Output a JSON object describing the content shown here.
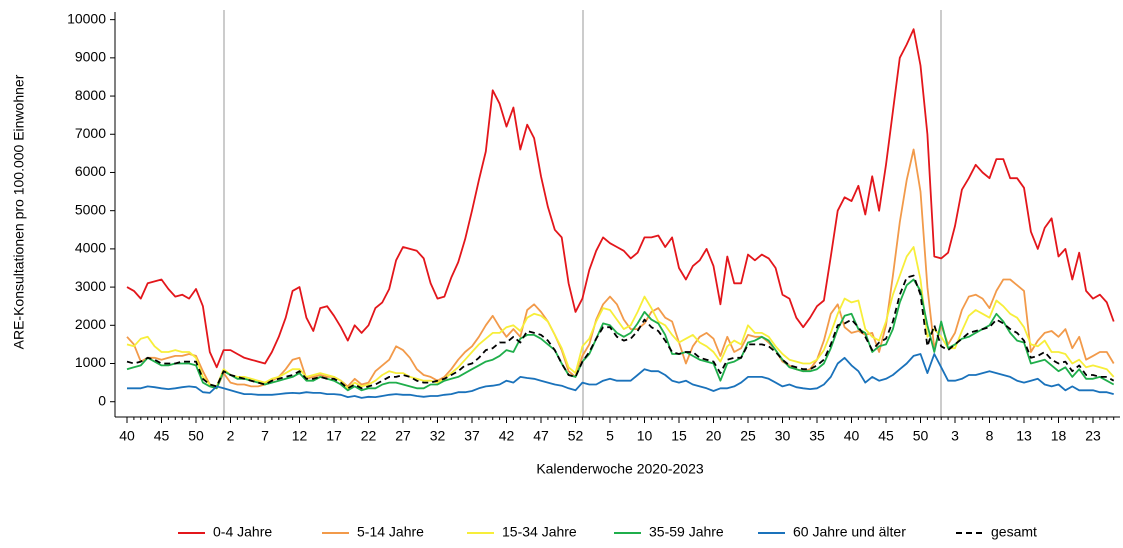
{
  "chart_data": {
    "type": "line",
    "y_label": "ARE-Konsultationen pro 100.000 Einwohner",
    "x_label": "Kalenderwoche 2020-2023",
    "categories": [
      "40",
      null,
      null,
      null,
      null,
      "45",
      null,
      null,
      null,
      null,
      "50",
      null,
      null,
      null,
      null,
      "2",
      null,
      null,
      null,
      null,
      "7",
      null,
      null,
      null,
      null,
      "12",
      null,
      null,
      null,
      null,
      "17",
      null,
      null,
      null,
      null,
      "22",
      null,
      null,
      null,
      null,
      "27",
      null,
      null,
      null,
      null,
      "32",
      null,
      null,
      null,
      null,
      "37",
      null,
      null,
      null,
      null,
      "42",
      null,
      null,
      null,
      null,
      "47",
      null,
      null,
      null,
      null,
      "52",
      null,
      null,
      null,
      null,
      "5",
      null,
      null,
      null,
      null,
      "10",
      null,
      null,
      null,
      null,
      "15",
      null,
      null,
      null,
      null,
      "20",
      null,
      null,
      null,
      null,
      "25",
      null,
      null,
      null,
      null,
      "30",
      null,
      null,
      null,
      null,
      "35",
      null,
      null,
      null,
      null,
      "40",
      null,
      null,
      null,
      null,
      "45",
      null,
      null,
      null,
      null,
      "50",
      null,
      null,
      null,
      null,
      "3",
      null,
      null,
      null,
      null,
      "8",
      null,
      null,
      null,
      null,
      "13",
      null,
      null,
      null,
      null,
      "18",
      null,
      null,
      null,
      null,
      "23",
      null,
      null,
      null
    ],
    "series": [
      {
        "name": "0-4 Jahre",
        "color": "#e3161b",
        "values": [
          3000,
          2900,
          2700,
          3100,
          3150,
          3200,
          2950,
          2750,
          2800,
          2700,
          2950,
          2500,
          1300,
          900,
          1350,
          1350,
          1250,
          1150,
          1100,
          1050,
          1000,
          1300,
          1700,
          2200,
          2900,
          3000,
          2200,
          1850,
          2450,
          2500,
          2250,
          1950,
          1600,
          2000,
          1800,
          2000,
          2450,
          2600,
          2950,
          3700,
          4050,
          4000,
          3950,
          3750,
          3100,
          2700,
          2750,
          3250,
          3650,
          4250,
          5000,
          5800,
          6550,
          8150,
          7800,
          7200,
          7700,
          6600,
          7250,
          6900,
          5900,
          5100,
          4500,
          4300,
          3100,
          2350,
          2700,
          3450,
          3950,
          4300,
          4150,
          4050,
          3950,
          3750,
          3900,
          4300,
          4300,
          4350,
          4050,
          4300,
          3500,
          3200,
          3550,
          3700,
          4000,
          3550,
          2550,
          3800,
          3100,
          3100,
          3850,
          3700,
          3850,
          3750,
          3500,
          2800,
          2700,
          2200,
          1950,
          2200,
          2500,
          2650,
          3800,
          5000,
          5350,
          5250,
          5650,
          4900,
          5900,
          5000,
          6200,
          7600,
          9000,
          9350,
          9750,
          8800,
          7000,
          3800,
          3750,
          3900,
          4600,
          5550,
          5850,
          6200,
          6000,
          5850,
          6350,
          6350,
          5850,
          5850,
          5600,
          4450,
          4000,
          4550,
          4800,
          3800,
          4000,
          3200,
          3900,
          2900,
          2700,
          2800,
          2600,
          2100
        ]
      },
      {
        "name": "5-14 Jahre",
        "color": "#f29a4a",
        "values": [
          1700,
          1500,
          1050,
          1150,
          1150,
          1100,
          1150,
          1200,
          1200,
          1250,
          1200,
          800,
          450,
          350,
          750,
          500,
          450,
          450,
          400,
          400,
          450,
          550,
          650,
          850,
          1100,
          1150,
          600,
          650,
          700,
          650,
          650,
          550,
          400,
          600,
          450,
          500,
          800,
          950,
          1100,
          1450,
          1350,
          1150,
          850,
          700,
          650,
          550,
          650,
          850,
          1100,
          1300,
          1450,
          1700,
          2000,
          2250,
          1950,
          1700,
          1900,
          1700,
          2400,
          2550,
          2350,
          2100,
          1750,
          1350,
          800,
          650,
          1200,
          1500,
          2150,
          2550,
          2750,
          2550,
          2150,
          1900,
          1900,
          2050,
          2350,
          2450,
          2200,
          2100,
          1550,
          1000,
          1450,
          1700,
          1800,
          1650,
          1200,
          1700,
          1300,
          1400,
          1750,
          1700,
          1700,
          1550,
          1350,
          1050,
          950,
          850,
          800,
          850,
          1100,
          1600,
          2300,
          2550,
          1950,
          1800,
          1850,
          1750,
          1800,
          1300,
          2000,
          3300,
          4700,
          5800,
          6600,
          5500,
          3000,
          1400,
          2000,
          1500,
          1800,
          2400,
          2750,
          2800,
          2700,
          2450,
          2900,
          3200,
          3200,
          3050,
          2900,
          1300,
          1600,
          1800,
          1850,
          1700,
          1900,
          1400,
          1700,
          1100,
          1200,
          1300,
          1300,
          1000
        ]
      },
      {
        "name": "15-34 Jahre",
        "color": "#f7ee3a",
        "values": [
          1500,
          1450,
          1650,
          1700,
          1450,
          1300,
          1300,
          1350,
          1300,
          1300,
          1150,
          650,
          450,
          400,
          850,
          700,
          650,
          650,
          600,
          550,
          500,
          600,
          650,
          750,
          850,
          850,
          650,
          700,
          750,
          700,
          650,
          550,
          350,
          500,
          400,
          450,
          550,
          700,
          800,
          750,
          750,
          650,
          600,
          550,
          550,
          500,
          600,
          750,
          900,
          1100,
          1300,
          1500,
          1650,
          1800,
          1800,
          1950,
          2000,
          1850,
          2200,
          2300,
          2250,
          2100,
          1750,
          1400,
          900,
          750,
          1450,
          1650,
          2100,
          2450,
          2400,
          2150,
          1900,
          2000,
          2350,
          2750,
          2450,
          2100,
          2000,
          1750,
          1550,
          1650,
          1750,
          1550,
          1450,
          1300,
          1050,
          1450,
          1600,
          1500,
          2000,
          1800,
          1800,
          1700,
          1450,
          1250,
          1100,
          1050,
          1000,
          1000,
          1100,
          1350,
          1800,
          2300,
          2700,
          2600,
          2650,
          1900,
          1700,
          1600,
          2100,
          2800,
          3300,
          3800,
          4050,
          3200,
          1700,
          1900,
          1700,
          1400,
          1400,
          1850,
          2250,
          2400,
          2300,
          2200,
          2650,
          2500,
          2300,
          2200,
          1950,
          1500,
          1450,
          1600,
          1300,
          1300,
          1250,
          1000,
          1100,
          900,
          950,
          900,
          850,
          650
        ]
      },
      {
        "name": "35-59 Jahre",
        "color": "#1fae4b",
        "values": [
          850,
          900,
          950,
          1150,
          1050,
          950,
          950,
          1000,
          1000,
          1000,
          950,
          500,
          400,
          350,
          800,
          700,
          600,
          600,
          550,
          500,
          450,
          500,
          550,
          600,
          650,
          750,
          550,
          550,
          650,
          600,
          550,
          450,
          300,
          400,
          300,
          350,
          350,
          450,
          500,
          500,
          450,
          400,
          350,
          350,
          450,
          450,
          550,
          600,
          650,
          750,
          850,
          950,
          1050,
          1100,
          1200,
          1350,
          1300,
          1650,
          1750,
          1750,
          1650,
          1500,
          1350,
          1000,
          700,
          650,
          1050,
          1250,
          1650,
          2050,
          2000,
          1800,
          1700,
          1800,
          2050,
          2350,
          2150,
          2050,
          1750,
          1250,
          1250,
          1300,
          1200,
          1100,
          1050,
          1000,
          550,
          1000,
          1050,
          1150,
          1550,
          1600,
          1700,
          1600,
          1350,
          1100,
          900,
          850,
          800,
          800,
          850,
          1000,
          1400,
          1900,
          2250,
          2300,
          1900,
          1800,
          1300,
          1450,
          1500,
          1900,
          2600,
          3050,
          3200,
          2900,
          2000,
          1300,
          2100,
          1400,
          1500,
          1650,
          1700,
          1800,
          1900,
          2000,
          2300,
          2100,
          1800,
          1600,
          1550,
          1000,
          1050,
          1100,
          950,
          800,
          900,
          650,
          850,
          600,
          600,
          650,
          550,
          450
        ]
      },
      {
        "name": "60 Jahre und älter",
        "color": "#1a72bb",
        "values": [
          350,
          350,
          350,
          400,
          380,
          350,
          330,
          350,
          380,
          400,
          380,
          250,
          230,
          400,
          350,
          300,
          250,
          200,
          200,
          180,
          180,
          180,
          200,
          220,
          230,
          220,
          250,
          230,
          230,
          200,
          200,
          180,
          120,
          150,
          100,
          130,
          120,
          150,
          180,
          200,
          180,
          180,
          150,
          130,
          150,
          150,
          180,
          200,
          250,
          250,
          280,
          350,
          400,
          420,
          450,
          550,
          500,
          650,
          620,
          600,
          550,
          500,
          450,
          420,
          350,
          300,
          500,
          450,
          450,
          550,
          600,
          550,
          550,
          550,
          700,
          850,
          800,
          800,
          700,
          550,
          500,
          550,
          450,
          400,
          350,
          280,
          350,
          350,
          400,
          500,
          650,
          650,
          650,
          600,
          500,
          400,
          450,
          380,
          350,
          330,
          350,
          450,
          650,
          1000,
          1150,
          950,
          800,
          500,
          650,
          550,
          600,
          700,
          850,
          1000,
          1200,
          1250,
          750,
          1250,
          900,
          550,
          550,
          600,
          700,
          700,
          750,
          800,
          750,
          700,
          650,
          550,
          500,
          550,
          600,
          450,
          400,
          450,
          300,
          400,
          300,
          300,
          300,
          250,
          250,
          200
        ]
      },
      {
        "name": "gesamt",
        "color": "#000000",
        "style": "dashed",
        "values": [
          1050,
          1000,
          1050,
          1150,
          1100,
          1000,
          1000,
          1000,
          1050,
          1050,
          1050,
          600,
          450,
          400,
          800,
          700,
          650,
          600,
          550,
          500,
          450,
          550,
          600,
          650,
          700,
          800,
          600,
          600,
          650,
          600,
          600,
          500,
          350,
          450,
          350,
          400,
          450,
          550,
          650,
          650,
          700,
          650,
          550,
          500,
          500,
          550,
          600,
          700,
          800,
          950,
          1000,
          1150,
          1350,
          1400,
          1550,
          1550,
          1700,
          1550,
          1850,
          1800,
          1750,
          1600,
          1350,
          1000,
          700,
          650,
          1050,
          1300,
          1650,
          1950,
          1950,
          1700,
          1600,
          1650,
          1850,
          2150,
          1950,
          1850,
          1600,
          1300,
          1250,
          1300,
          1300,
          1150,
          1100,
          1050,
          750,
          1100,
          1150,
          1150,
          1500,
          1500,
          1500,
          1450,
          1300,
          1100,
          950,
          900,
          850,
          850,
          950,
          1100,
          1500,
          2000,
          2050,
          2150,
          1950,
          1700,
          1350,
          1550,
          1650,
          2100,
          2800,
          3250,
          3300,
          2800,
          1450,
          2000,
          1450,
          1350,
          1500,
          1650,
          1800,
          1850,
          1900,
          1950,
          2150,
          2050,
          1900,
          1800,
          1600,
          1150,
          1200,
          1300,
          1100,
          1000,
          1050,
          800,
          950,
          700,
          700,
          650,
          650,
          550
        ]
      }
    ],
    "ylim": [
      -400,
      10200
    ],
    "yticks": [
      0,
      1000,
      2000,
      3000,
      4000,
      5000,
      6000,
      7000,
      8000,
      9000,
      10000
    ]
  }
}
